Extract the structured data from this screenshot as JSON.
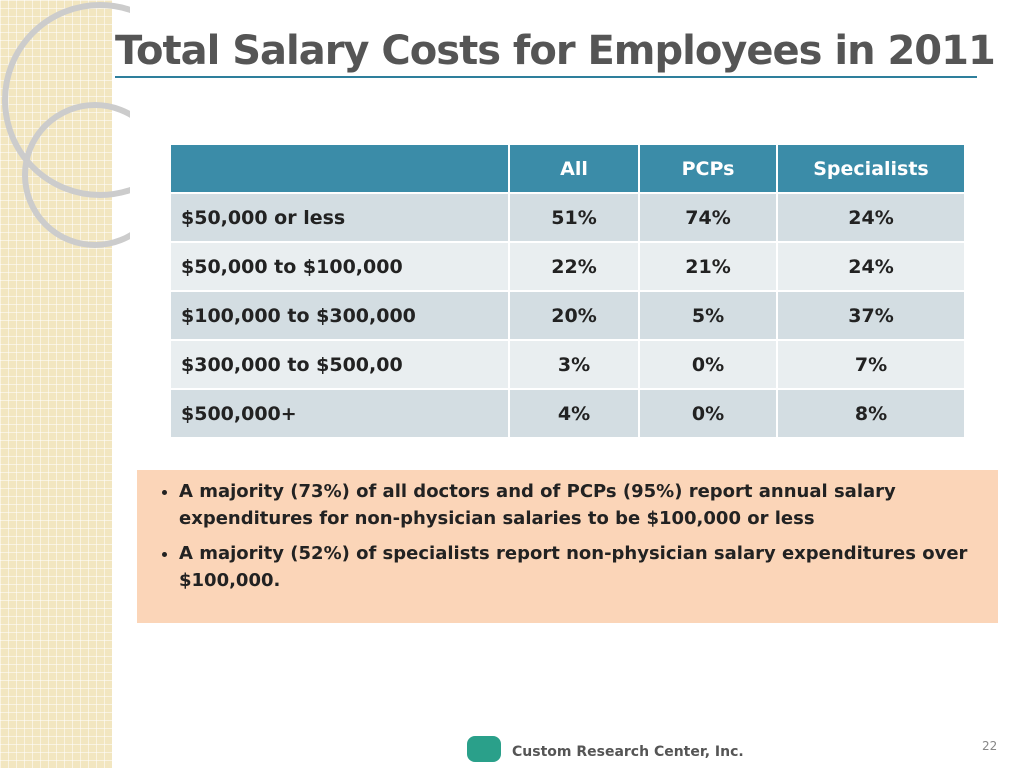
{
  "title": "Total Salary Costs for Employees in 2011",
  "table": {
    "header": [
      "",
      "All",
      "PCPs",
      "Specialists"
    ],
    "rows": [
      [
        "$50,000 or less",
        "51%",
        "74%",
        "24%"
      ],
      [
        "$50,000 to $100,000",
        "22%",
        "21%",
        "24%"
      ],
      [
        "$100,000 to $300,000",
        "20%",
        "5%",
        "37%"
      ],
      [
        "$300,000 to $500,00",
        "3%",
        "0%",
        "7%"
      ],
      [
        "$500,000+",
        "4%",
        "0%",
        "8%"
      ]
    ]
  },
  "bullets": [
    "A majority (73%) of all doctors and of PCPs (95%) report annual salary expenditures for non-physician salaries to be $100,000 or less",
    "A majority (52%) of specialists report non-physician salary expenditures over $100,000."
  ],
  "footer": {
    "company": "Custom Research Center, Inc.",
    "page": "22"
  }
}
